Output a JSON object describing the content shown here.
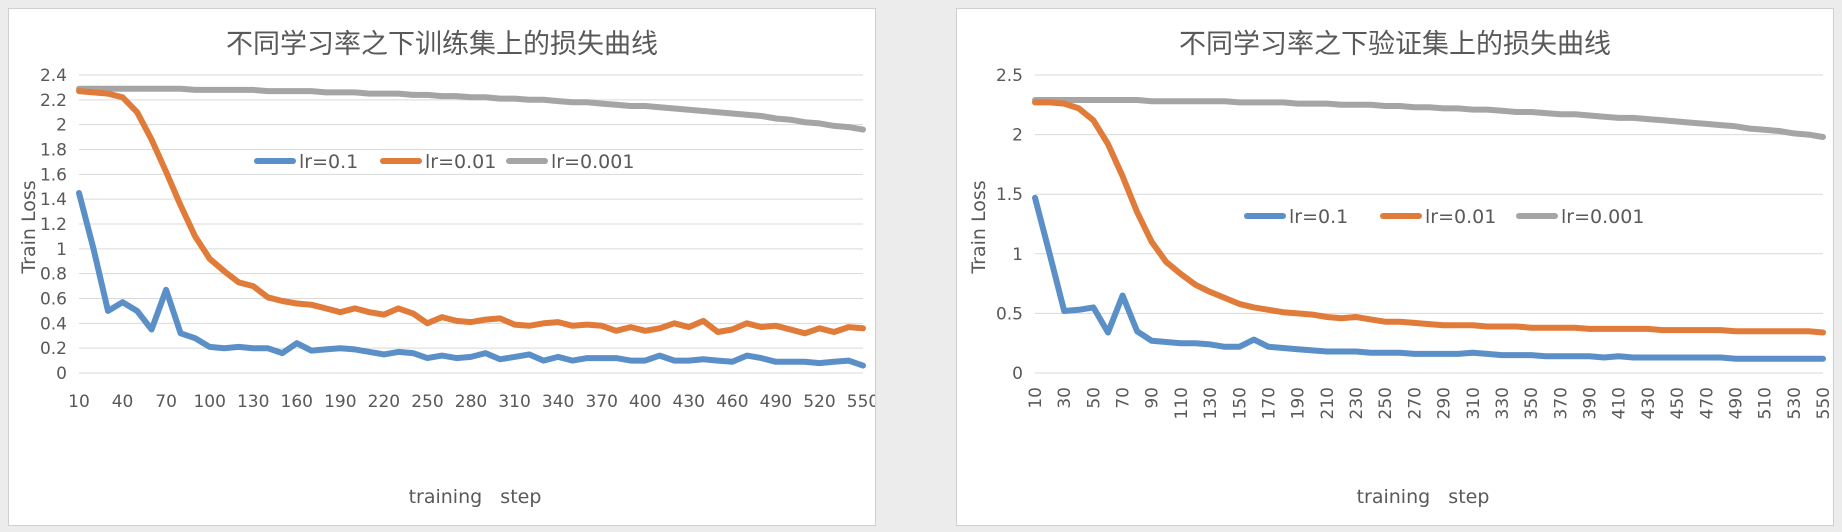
{
  "chart_data": [
    {
      "type": "line",
      "title": "不同学习率之下训练集上的损失曲线",
      "xlabel": "training   step",
      "ylabel": "Train  Loss",
      "x": [
        10,
        20,
        30,
        40,
        50,
        60,
        70,
        80,
        90,
        100,
        110,
        120,
        130,
        140,
        150,
        160,
        170,
        180,
        190,
        200,
        210,
        220,
        230,
        240,
        250,
        260,
        270,
        280,
        290,
        300,
        310,
        320,
        330,
        340,
        350,
        360,
        370,
        380,
        390,
        400,
        410,
        420,
        430,
        440,
        450,
        460,
        470,
        480,
        490,
        500,
        510,
        520,
        530,
        540,
        550
      ],
      "xticks": [
        10,
        40,
        70,
        100,
        130,
        160,
        190,
        220,
        250,
        280,
        310,
        340,
        370,
        400,
        430,
        460,
        490,
        520,
        550
      ],
      "xtick_rotation": 0,
      "xlim": [
        10,
        550
      ],
      "ylim": [
        0,
        2.4
      ],
      "yticks": [
        "0",
        "0.2",
        "0.4",
        "0.6",
        "0.8",
        "1",
        "1.2",
        "1.4",
        "1.6",
        "1.8",
        "2",
        "2.2",
        "2.4"
      ],
      "grid": true,
      "legend_position": "center",
      "series": [
        {
          "name": "lr=0.1",
          "color": "#5b8fc7",
          "values": [
            1.45,
            1.0,
            0.5,
            0.57,
            0.5,
            0.35,
            0.67,
            0.32,
            0.28,
            0.21,
            0.2,
            0.21,
            0.2,
            0.2,
            0.16,
            0.24,
            0.18,
            0.19,
            0.2,
            0.19,
            0.17,
            0.15,
            0.17,
            0.16,
            0.12,
            0.14,
            0.12,
            0.13,
            0.16,
            0.11,
            0.13,
            0.15,
            0.1,
            0.13,
            0.1,
            0.12,
            0.12,
            0.12,
            0.1,
            0.1,
            0.14,
            0.1,
            0.1,
            0.11,
            0.1,
            0.09,
            0.14,
            0.12,
            0.09,
            0.09,
            0.09,
            0.08,
            0.09,
            0.1,
            0.06
          ]
        },
        {
          "name": "lr=0.01",
          "color": "#e07b39",
          "values": [
            2.27,
            2.26,
            2.25,
            2.22,
            2.1,
            1.88,
            1.62,
            1.35,
            1.1,
            0.92,
            0.82,
            0.73,
            0.7,
            0.61,
            0.58,
            0.56,
            0.55,
            0.52,
            0.49,
            0.52,
            0.49,
            0.47,
            0.52,
            0.48,
            0.4,
            0.45,
            0.42,
            0.41,
            0.43,
            0.44,
            0.39,
            0.38,
            0.4,
            0.41,
            0.38,
            0.39,
            0.38,
            0.34,
            0.37,
            0.34,
            0.36,
            0.4,
            0.37,
            0.42,
            0.33,
            0.35,
            0.4,
            0.37,
            0.38,
            0.35,
            0.32,
            0.36,
            0.33,
            0.37,
            0.36
          ]
        },
        {
          "name": "lr=0.001",
          "color": "#a5a5a5",
          "values": [
            2.29,
            2.29,
            2.29,
            2.29,
            2.29,
            2.29,
            2.29,
            2.29,
            2.28,
            2.28,
            2.28,
            2.28,
            2.28,
            2.27,
            2.27,
            2.27,
            2.27,
            2.26,
            2.26,
            2.26,
            2.25,
            2.25,
            2.25,
            2.24,
            2.24,
            2.23,
            2.23,
            2.22,
            2.22,
            2.21,
            2.21,
            2.2,
            2.2,
            2.19,
            2.18,
            2.18,
            2.17,
            2.16,
            2.15,
            2.15,
            2.14,
            2.13,
            2.12,
            2.11,
            2.1,
            2.09,
            2.08,
            2.07,
            2.05,
            2.04,
            2.02,
            2.01,
            1.99,
            1.98,
            1.96
          ]
        }
      ]
    },
    {
      "type": "line",
      "title": "不同学习率之下验证集上的损失曲线",
      "xlabel": "training   step",
      "ylabel": "Train  Loss",
      "x": [
        10,
        20,
        30,
        40,
        50,
        60,
        70,
        80,
        90,
        100,
        110,
        120,
        130,
        140,
        150,
        160,
        170,
        180,
        190,
        200,
        210,
        220,
        230,
        240,
        250,
        260,
        270,
        280,
        290,
        300,
        310,
        320,
        330,
        340,
        350,
        360,
        370,
        380,
        390,
        400,
        410,
        420,
        430,
        440,
        450,
        460,
        470,
        480,
        490,
        500,
        510,
        520,
        530,
        540,
        550
      ],
      "xticks": [
        10,
        30,
        50,
        70,
        90,
        110,
        130,
        150,
        170,
        190,
        210,
        230,
        250,
        270,
        290,
        310,
        330,
        350,
        370,
        390,
        410,
        430,
        450,
        470,
        490,
        510,
        530,
        550
      ],
      "xtick_rotation": -90,
      "xlim": [
        10,
        550
      ],
      "ylim": [
        0,
        2.5
      ],
      "yticks": [
        "0",
        "0.5",
        "1",
        "1.5",
        "2",
        "2.5"
      ],
      "grid": true,
      "legend_position": "center-right",
      "series": [
        {
          "name": "lr=0.1",
          "color": "#5b8fc7",
          "values": [
            1.47,
            1.0,
            0.52,
            0.53,
            0.55,
            0.34,
            0.65,
            0.35,
            0.27,
            0.26,
            0.25,
            0.25,
            0.24,
            0.22,
            0.22,
            0.28,
            0.22,
            0.21,
            0.2,
            0.19,
            0.18,
            0.18,
            0.18,
            0.17,
            0.17,
            0.17,
            0.16,
            0.16,
            0.16,
            0.16,
            0.17,
            0.16,
            0.15,
            0.15,
            0.15,
            0.14,
            0.14,
            0.14,
            0.14,
            0.13,
            0.14,
            0.13,
            0.13,
            0.13,
            0.13,
            0.13,
            0.13,
            0.13,
            0.12,
            0.12,
            0.12,
            0.12,
            0.12,
            0.12,
            0.12
          ]
        },
        {
          "name": "lr=0.01",
          "color": "#e07b39",
          "values": [
            2.27,
            2.27,
            2.26,
            2.22,
            2.12,
            1.92,
            1.65,
            1.35,
            1.1,
            0.93,
            0.83,
            0.74,
            0.68,
            0.63,
            0.58,
            0.55,
            0.53,
            0.51,
            0.5,
            0.49,
            0.47,
            0.46,
            0.47,
            0.45,
            0.43,
            0.43,
            0.42,
            0.41,
            0.4,
            0.4,
            0.4,
            0.39,
            0.39,
            0.39,
            0.38,
            0.38,
            0.38,
            0.38,
            0.37,
            0.37,
            0.37,
            0.37,
            0.37,
            0.36,
            0.36,
            0.36,
            0.36,
            0.36,
            0.35,
            0.35,
            0.35,
            0.35,
            0.35,
            0.35,
            0.34
          ]
        },
        {
          "name": "lr=0.001",
          "color": "#a5a5a5",
          "values": [
            2.29,
            2.29,
            2.29,
            2.29,
            2.29,
            2.29,
            2.29,
            2.29,
            2.28,
            2.28,
            2.28,
            2.28,
            2.28,
            2.28,
            2.27,
            2.27,
            2.27,
            2.27,
            2.26,
            2.26,
            2.26,
            2.25,
            2.25,
            2.25,
            2.24,
            2.24,
            2.23,
            2.23,
            2.22,
            2.22,
            2.21,
            2.21,
            2.2,
            2.19,
            2.19,
            2.18,
            2.17,
            2.17,
            2.16,
            2.15,
            2.14,
            2.14,
            2.13,
            2.12,
            2.11,
            2.1,
            2.09,
            2.08,
            2.07,
            2.05,
            2.04,
            2.03,
            2.01,
            2.0,
            1.98
          ]
        }
      ]
    }
  ]
}
